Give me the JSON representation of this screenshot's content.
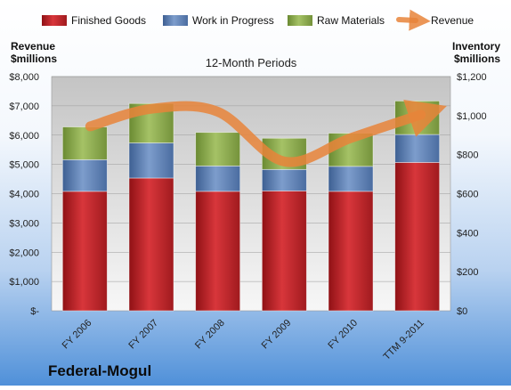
{
  "chart_data": {
    "type": "bar",
    "stacked": true,
    "title": "12-Month Periods",
    "company": "Federal-Mogul",
    "left_axis_title": [
      "Revenue",
      "$millions"
    ],
    "right_axis_title": [
      "Inventory",
      "$millions"
    ],
    "categories": [
      "FY 2006",
      "FY 2007",
      "FY 2008",
      "FY 2009",
      "FY 2010",
      "TTM 9-2011"
    ],
    "series": [
      {
        "name": "Finished Goods",
        "axis": "right",
        "color": "#c0282d",
        "values": [
          612,
          680,
          612,
          614,
          612,
          760
        ]
      },
      {
        "name": "Work in Progress",
        "axis": "right",
        "color": "#5b7fb5",
        "values": [
          162,
          180,
          130,
          110,
          128,
          143
        ]
      },
      {
        "name": "Raw Materials",
        "axis": "right",
        "color": "#8aa84a",
        "values": [
          168,
          202,
          172,
          160,
          170,
          172
        ]
      }
    ],
    "line_series": {
      "name": "Revenue",
      "axis": "left",
      "color": "#e8843a",
      "values": [
        6300,
        6900,
        6800,
        5100,
        5900,
        6700
      ]
    },
    "left_axis": {
      "min": 0,
      "max": 8000,
      "step": 1000,
      "tick_labels": [
        "$-",
        "$1,000",
        "$2,000",
        "$3,000",
        "$4,000",
        "$5,000",
        "$6,000",
        "$7,000",
        "$8,000"
      ]
    },
    "right_axis": {
      "min": 0,
      "max": 1200,
      "step": 200,
      "tick_labels": [
        "$0",
        "$200",
        "$400",
        "$600",
        "$800",
        "$1,000",
        "$1,200"
      ]
    },
    "legend_position": "top",
    "grid": true
  }
}
